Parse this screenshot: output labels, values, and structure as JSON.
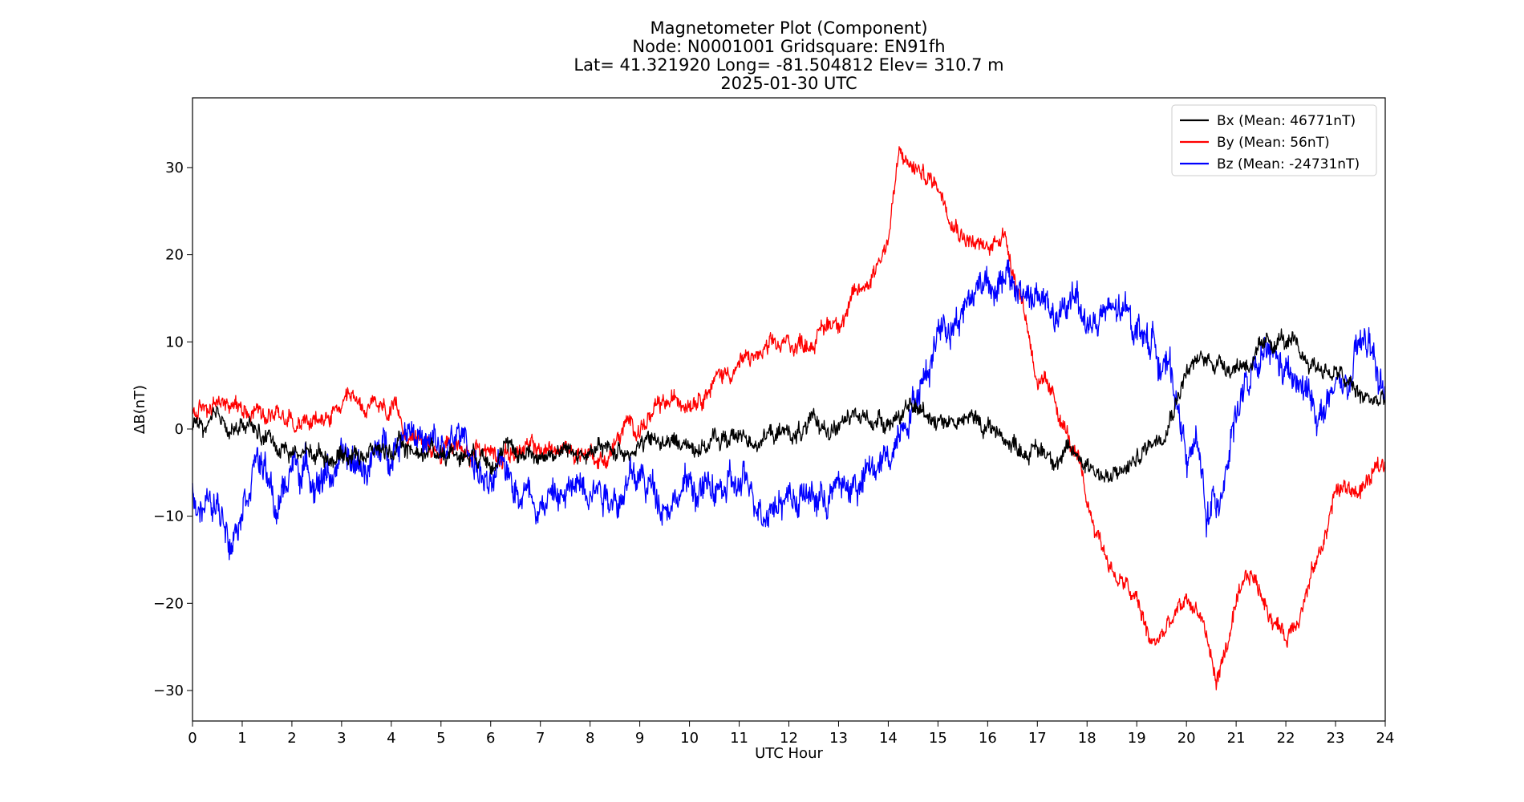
{
  "chart_data": {
    "type": "line",
    "title_lines": [
      "Magnetometer Plot (Component)",
      "Node:  N0001001     Gridsquare:  EN91fh",
      "Lat= 41.321920    Long= -81.504812    Elev= 310.7 m",
      "2025-01-30  UTC"
    ],
    "xlabel": "UTC Hour",
    "ylabel": "ΔB(nT)",
    "xlim": [
      0,
      24
    ],
    "ylim": [
      -33.5,
      38
    ],
    "xticks": [
      0,
      1,
      2,
      3,
      4,
      5,
      6,
      7,
      8,
      9,
      10,
      11,
      12,
      13,
      14,
      15,
      16,
      17,
      18,
      19,
      20,
      21,
      22,
      23,
      24
    ],
    "yticks": [
      -30,
      -20,
      -10,
      0,
      10,
      20,
      30
    ],
    "ytick_labels": [
      "−30",
      "−20",
      "−10",
      "0",
      "10",
      "20",
      "30"
    ],
    "grid": false,
    "legend_position": "top-right",
    "series": [
      {
        "name": "Bx (Mean: 46771nT)",
        "color": "#000000",
        "noise": 1.0,
        "x": [
          0,
          0.3,
          0.7,
          1,
          1.5,
          2,
          3,
          4,
          5,
          6,
          7,
          7.5,
          8,
          8.5,
          9,
          10,
          11,
          12,
          13,
          14,
          14.5,
          15,
          15.5,
          16,
          16.5,
          17,
          17.5,
          18,
          18.5,
          19,
          19.5,
          20,
          20.5,
          21,
          21.5,
          21.9,
          22.3,
          23,
          23.5,
          24
        ],
        "y": [
          0.5,
          0,
          0.5,
          0.3,
          -1,
          -2.5,
          -2.8,
          -2.3,
          -2.5,
          -2.5,
          -2.8,
          -2.5,
          -3,
          -2.5,
          -1.5,
          -1.8,
          -1,
          -0.5,
          0.5,
          1.5,
          2,
          1.5,
          1,
          0.5,
          -1.5,
          -2.5,
          -2.8,
          -3.5,
          -6,
          -3.5,
          0,
          7,
          8,
          7.5,
          8.5,
          10.5,
          8,
          6.5,
          3.5,
          3
        ]
      },
      {
        "name": "By (Mean: 56nT)",
        "color": "#ff0000",
        "noise": 1.0,
        "x": [
          0,
          0.5,
          1,
          1.5,
          2,
          2.5,
          3,
          3.5,
          4,
          4.5,
          5,
          6,
          7,
          8,
          8.3,
          8.7,
          9,
          10,
          11,
          12,
          12.5,
          13,
          13.5,
          14,
          14.2,
          14.5,
          15,
          15.5,
          16,
          16.3,
          16.7,
          17,
          17.5,
          17.8,
          18,
          18.5,
          19,
          19.3,
          19.6,
          20,
          20.3,
          20.6,
          21,
          21.3,
          21.6,
          22,
          22.3,
          22.7,
          23,
          23.5,
          24
        ],
        "y": [
          1.5,
          3,
          3,
          2.5,
          1.5,
          0.5,
          2,
          2.5,
          1.5,
          -1,
          -2,
          -2.5,
          -2.5,
          -2.5,
          -3.5,
          0,
          0.5,
          4,
          7.5,
          9.5,
          10.5,
          13,
          16,
          22,
          31,
          30,
          28,
          23,
          20,
          23,
          15,
          6,
          1,
          -4,
          -9,
          -16,
          -20,
          -25,
          -23,
          -20,
          -21,
          -29,
          -21,
          -17,
          -20,
          -24,
          -20,
          -14,
          -7,
          -7,
          -4
        ]
      },
      {
        "name": "Bz (Mean: -24731nT)",
        "color": "#0000ff",
        "noise": 1.8,
        "x": [
          0,
          0.5,
          0.8,
          1,
          1.3,
          1.7,
          2,
          2.5,
          3,
          3.5,
          4,
          4.4,
          4.7,
          5,
          5.5,
          6,
          6.3,
          7,
          7.5,
          8,
          8.5,
          9,
          9.5,
          10,
          10.5,
          11,
          11.5,
          12,
          12.5,
          13,
          13.5,
          14,
          14.3,
          14.5,
          14.8,
          15,
          15.5,
          16,
          16.5,
          17,
          17.5,
          17.8,
          18,
          18.5,
          19,
          19.5,
          19.8,
          20,
          20.2,
          20.4,
          20.6,
          20.8,
          21,
          21.3,
          21.7,
          22,
          22.3,
          22.7,
          23,
          23.3,
          23.6,
          24
        ],
        "y": [
          -7,
          -9.5,
          -11,
          -7,
          -2,
          -10,
          -4,
          -5,
          -4.5,
          -4,
          -2,
          2,
          -2,
          -3,
          -1,
          -7.5,
          -5,
          -7.5,
          -8,
          -5,
          -7,
          -6,
          -7.5,
          -6.5,
          -7.5,
          -7,
          -8,
          -7,
          -8,
          -7,
          -6,
          -4,
          2,
          4,
          7,
          12,
          14,
          18,
          16,
          15,
          12,
          16,
          12,
          13,
          12,
          9,
          4,
          -3,
          -2,
          -10,
          -9,
          -3,
          3,
          5,
          8,
          6,
          4,
          2,
          4,
          5,
          10,
          4
        ]
      }
    ]
  }
}
